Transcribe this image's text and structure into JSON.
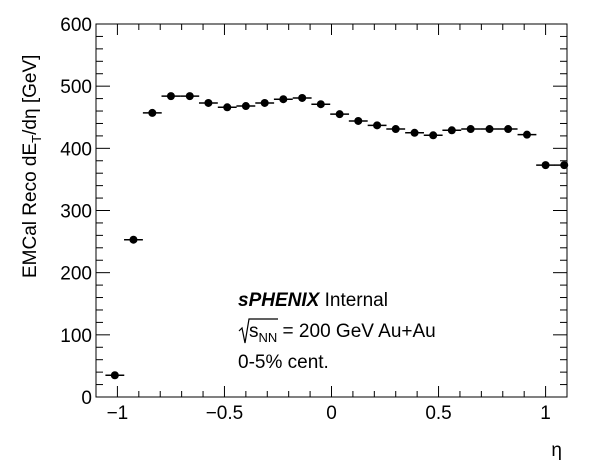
{
  "chart_data": {
    "type": "scatter",
    "title": "",
    "xlabel": "η",
    "ylabel": "EMCal Reco dE",
    "ylabel_sub": "T",
    "ylabel_tail": "/dη [GeV]",
    "xlim": [
      -1.1,
      1.1
    ],
    "ylim": [
      0,
      600
    ],
    "x_ticks": [
      "−1",
      "−0.5",
      "0",
      "0.5",
      "1"
    ],
    "y_ticks": [
      "0",
      "100",
      "200",
      "300",
      "400",
      "500",
      "600"
    ],
    "x_tick_values": [
      -1,
      -0.5,
      0,
      0.5,
      1
    ],
    "y_tick_values": [
      0,
      100,
      200,
      300,
      400,
      500,
      600
    ],
    "bin_half_width": 0.044,
    "series": [
      {
        "x": [
          -1.012,
          -0.925,
          -0.837,
          -0.75,
          -0.662,
          -0.575,
          -0.487,
          -0.4,
          -0.312,
          -0.225,
          -0.137,
          -0.05,
          0.038,
          0.125,
          0.213,
          0.3,
          0.388,
          0.475,
          0.562,
          0.65,
          0.738,
          0.825,
          0.913,
          1.0,
          1.087
        ],
        "y": [
          35,
          253,
          457,
          484,
          484,
          473,
          466,
          468,
          473,
          479,
          481,
          471,
          455,
          444,
          437,
          431,
          425,
          421,
          429,
          431,
          431,
          431,
          422,
          373,
          373
        ],
        "marker_color": "#000000"
      }
    ],
    "annotations": {
      "experiment": "sPHENIX",
      "status": "Internal",
      "energy_sqrt": "s",
      "energy_sub": "NN",
      "energy_rest": " = 200 GeV Au+Au",
      "centrality": "0-5% cent."
    },
    "grid": false,
    "legend": "none"
  }
}
